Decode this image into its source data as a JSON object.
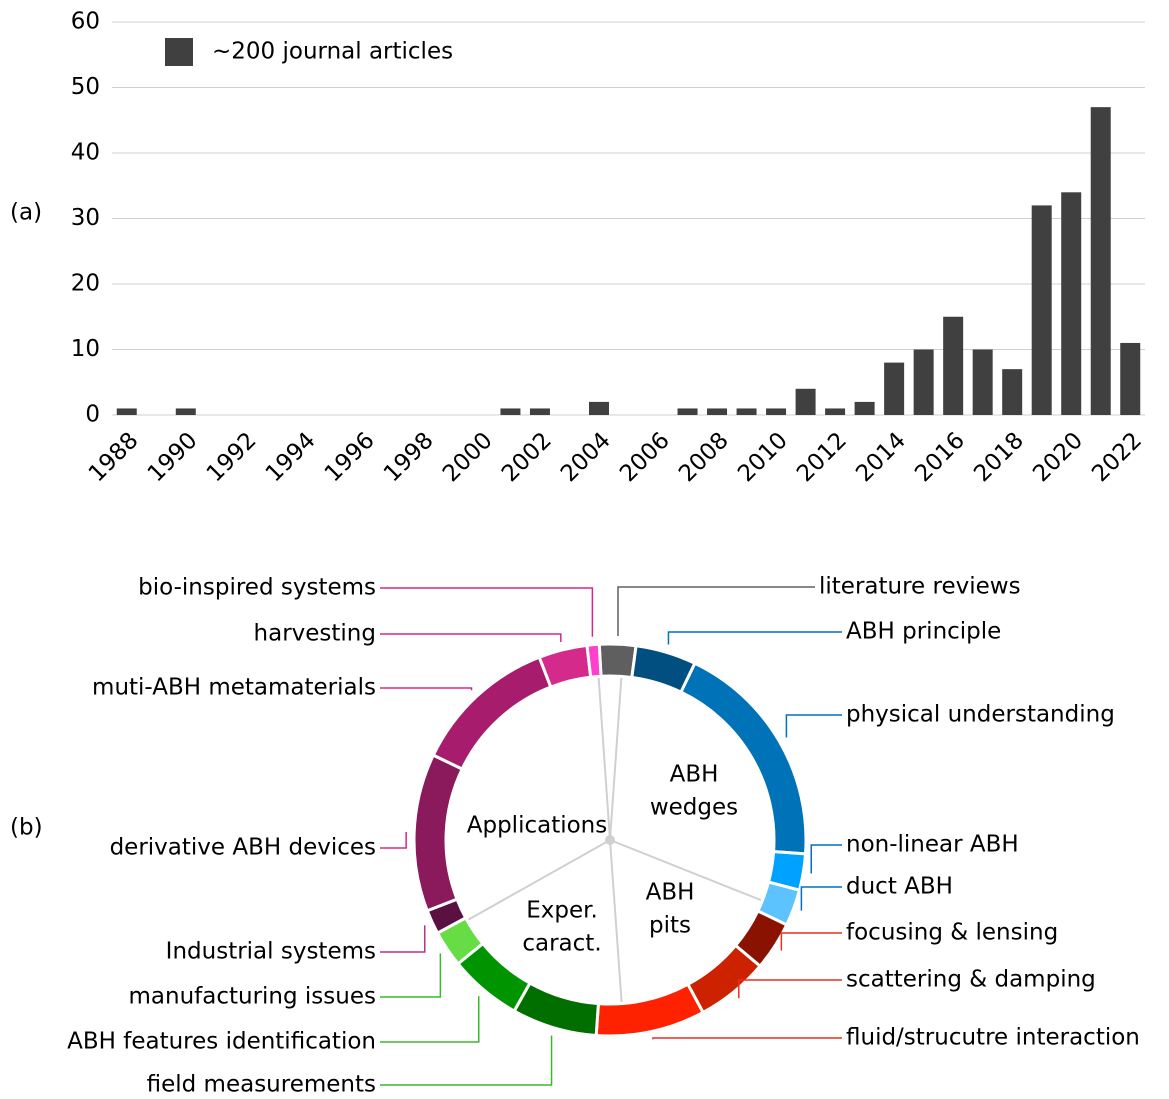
{
  "chart_data": [
    {
      "type": "bar",
      "panel": "(a)",
      "legend": "~200 journal articles",
      "color": "#404040",
      "categories": [
        "1988",
        null,
        "1990",
        null,
        "1992",
        null,
        "1994",
        null,
        "1996",
        null,
        "1998",
        null,
        "2000",
        null,
        "2002",
        null,
        "2004",
        null,
        "2006",
        null,
        "2008",
        null,
        "2010",
        null,
        "2012",
        null,
        "2014",
        null,
        "2016",
        null,
        "2018",
        null,
        "2020",
        null,
        "2022"
      ],
      "values": [
        1,
        0,
        1,
        0,
        0,
        0,
        0,
        0,
        0,
        0,
        0,
        0,
        0,
        1,
        1,
        0,
        2,
        0,
        0,
        1,
        1,
        1,
        1,
        4,
        1,
        2,
        8,
        10,
        15,
        10,
        7,
        32,
        34,
        47,
        11
      ],
      "ylim": [
        0,
        60
      ],
      "yticks": [
        0,
        10,
        20,
        30,
        40,
        50,
        60
      ],
      "grid": true
    },
    {
      "type": "donut",
      "panel": "(b)",
      "categories": [
        "literature reviews",
        "ABH principle",
        "physical understanding",
        "non-linear ABH",
        "duct ABH",
        "focusing & lensing",
        "scattering & damping",
        "fluid/strucutre interaction",
        "field measurements",
        "ABH features identification",
        "manufacturing issues",
        "Industrial systems",
        "derivative ABH devices",
        "muti-ABH metamaterials",
        "harvesting",
        "bio-inspired systems"
      ],
      "values": [
        3,
        5,
        19,
        3,
        3,
        4,
        6,
        9,
        7,
        6,
        3,
        2,
        13,
        12,
        4,
        1
      ],
      "colors": [
        "#5f5f5f",
        "#004f80",
        "#0072b8",
        "#00a2ff",
        "#5cc3ff",
        "#8a1200",
        "#cc2200",
        "#ff2200",
        "#006f00",
        "#009500",
        "#66dd44",
        "#5a1040",
        "#8a1a5c",
        "#a81c6e",
        "#d42a8c",
        "#ff40cc"
      ],
      "label_colors": [
        "#606060",
        "#0070c0",
        "#0070c0",
        "#0070c0",
        "#0070c0",
        "#e8301c",
        "#e8301c",
        "#e8301c",
        "#3cb82c",
        "#3cb82c",
        "#3cb82c",
        "#b83088",
        "#d02a8c",
        "#d02a8c",
        "#d02a8c",
        "#d02a8c"
      ],
      "groups": [
        {
          "lines": [
            "ABH",
            "wedges"
          ],
          "color": "#004f80"
        },
        {
          "lines": [
            "ABH",
            "pits"
          ],
          "color": "#a81000"
        },
        {
          "lines": [
            "Exper.",
            "caract."
          ],
          "color": "#007000"
        },
        {
          "lines": [
            "Applications"
          ],
          "color": "#d02a8c"
        }
      ]
    }
  ]
}
